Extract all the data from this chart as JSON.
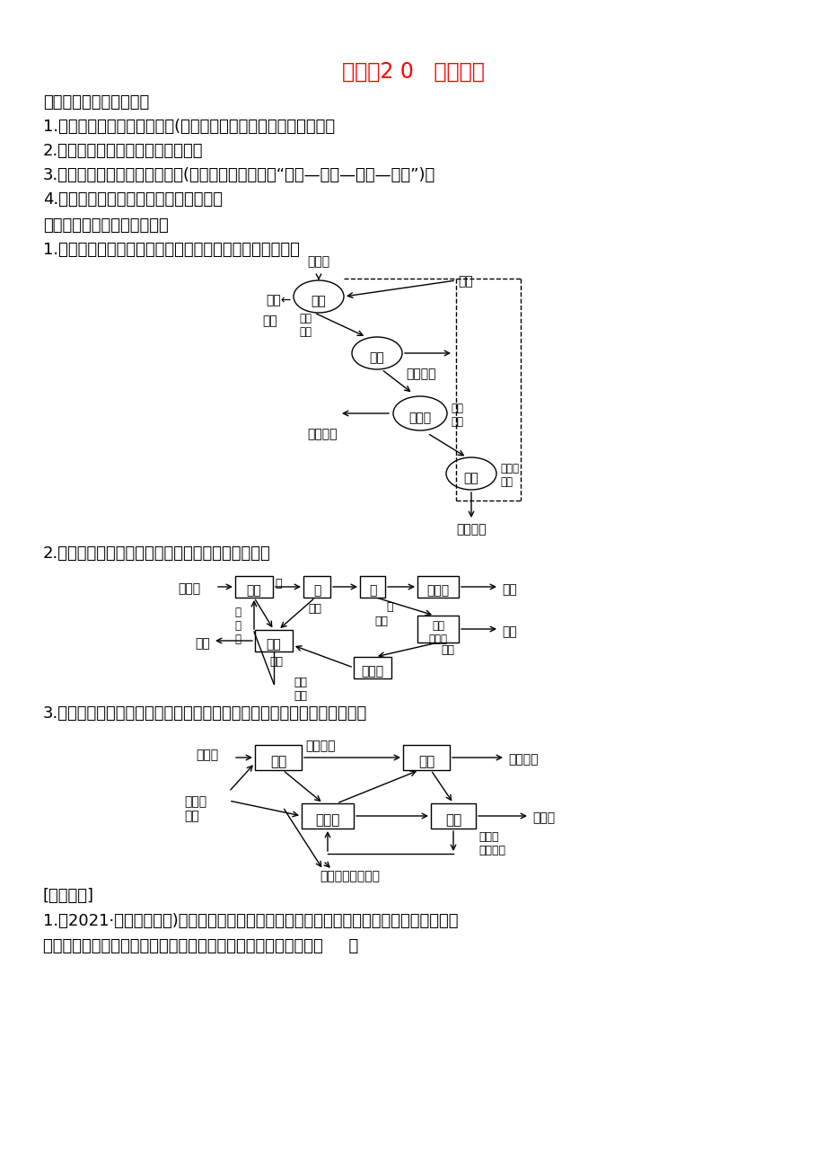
{
  "title": "微专题2 0   生态农业",
  "title_color": "#FF0000",
  "bg_color": "#FFFFFF",
  "text_color": "#000000",
  "line1": "一、生态农业的设计原理",
  "line2": "1.研究设计合理的食物链组成(或营养结构），提高抗抗力稳定性。",
  "line3": "2.实现生态系统中能量的多级利用。",
  "line4": "3.实现生态系统中物质循环再生(或实现可持续发展或“原料—产品—原料—产品”)。",
  "line5": "4.提高整个系统的总体功能和综合效益。",
  "line6": "二、我国生态农业的常见类型",
  "line7": "1.物质能量的多层分级利用系统，如作物秸秆的多级利用。",
  "line8": "2.水陆交换的物质循环系统，如桑基鱼塘生产体系。",
  "line9": "3.农林牧渔联合生产系统，如农林牧渔生产体系和粮桑渔畜农业生态体系。",
  "line10": "[对点训练]",
  "line11": "1.（2021·河南三市联考)某地大力发展兿肥产沼气，沼渣兿表螓，螓螓兿家禽，秸秆种菇，",
  "line12": "桑基鱼塘等生态农业。下列关于农业生态系统的叙述，错误的是（     ）"
}
